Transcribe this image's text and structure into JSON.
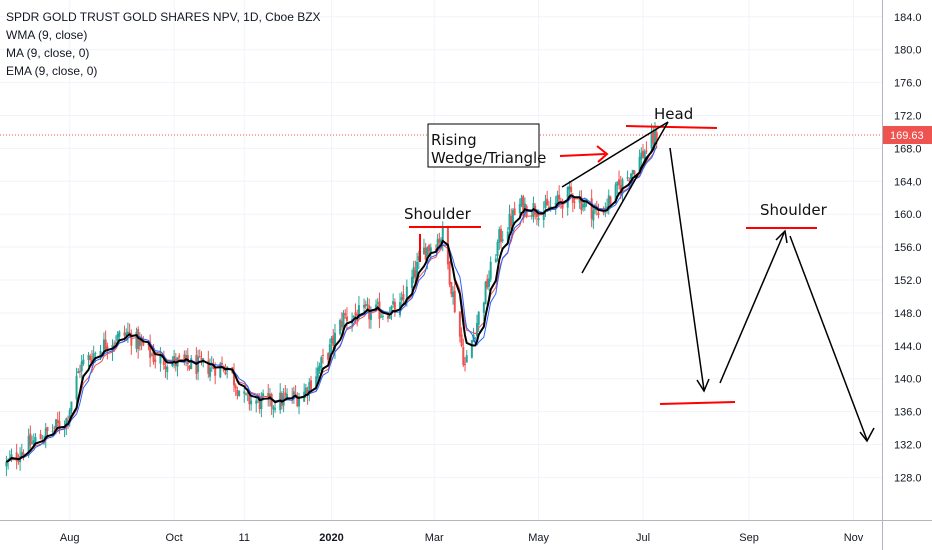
{
  "legend": {
    "title": "SPDR GOLD TRUST GOLD SHARES NPV, 1D, Cboe BZX",
    "indicators": [
      "WMA (9, close)",
      "MA (9, close, 0)",
      "EMA (9, close, 0)"
    ]
  },
  "colors": {
    "up": "#26a69a",
    "down": "#ef5350",
    "wma": "#000000",
    "ma": "#2962ff",
    "ema": "#ef5350",
    "grid": "#f0f3fa",
    "axis_text": "#131722",
    "price_badge": "#ef5350",
    "annotation_red": "#ff0000",
    "annotation_dark": "#000000"
  },
  "chart_data": {
    "type": "candlestick",
    "x_axis": {
      "ticks": [
        "Aug",
        "Oct",
        "11",
        "2020",
        "Mar",
        "May",
        "Jul",
        "Sep",
        "Nov"
      ]
    },
    "y_axis": {
      "range": [
        124,
        186
      ],
      "ticks": [
        128.0,
        132.0,
        136.0,
        140.0,
        144.0,
        148.0,
        152.0,
        156.0,
        160.0,
        164.0,
        168.0,
        172.0,
        176.0,
        180.0,
        184.0
      ]
    },
    "last_price": 169.63,
    "last_price_label": "169.63",
    "price_path": [
      [
        "2019-06-25",
        129.5
      ],
      [
        "2019-07-05",
        131.5
      ],
      [
        "2019-07-20",
        133.5
      ],
      [
        "2019-07-30",
        135.0
      ],
      [
        "2019-08-07",
        141.5
      ],
      [
        "2019-08-23",
        144.5
      ],
      [
        "2019-09-04",
        145.5
      ],
      [
        "2019-09-20",
        142.5
      ],
      [
        "2019-10-01",
        142.0
      ],
      [
        "2019-10-15",
        141.5
      ],
      [
        "2019-11-01",
        141.5
      ],
      [
        "2019-11-11",
        137.5
      ],
      [
        "2019-11-25",
        137.0
      ],
      [
        "2019-12-15",
        138.0
      ],
      [
        "2019-12-31",
        143.5
      ],
      [
        "2020-01-08",
        147.5
      ],
      [
        "2020-01-25",
        148.0
      ],
      [
        "2020-02-10",
        148.5
      ],
      [
        "2020-02-24",
        155.5
      ],
      [
        "2020-03-06",
        157.5
      ],
      [
        "2020-03-19",
        141.5
      ],
      [
        "2020-04-08",
        157.0
      ],
      [
        "2020-04-20",
        161.0
      ],
      [
        "2020-05-06",
        160.5
      ],
      [
        "2020-05-20",
        162.5
      ],
      [
        "2020-06-05",
        160.0
      ],
      [
        "2020-06-20",
        164.0
      ],
      [
        "2020-07-03",
        168.0
      ],
      [
        "2020-07-09",
        169.63
      ]
    ],
    "annotations": {
      "head": "Head",
      "shoulder_left": "Shoulder",
      "shoulder_right": "Shoulder",
      "wedge_line1": "Rising",
      "wedge_line2": "Wedge/Triangle"
    }
  }
}
